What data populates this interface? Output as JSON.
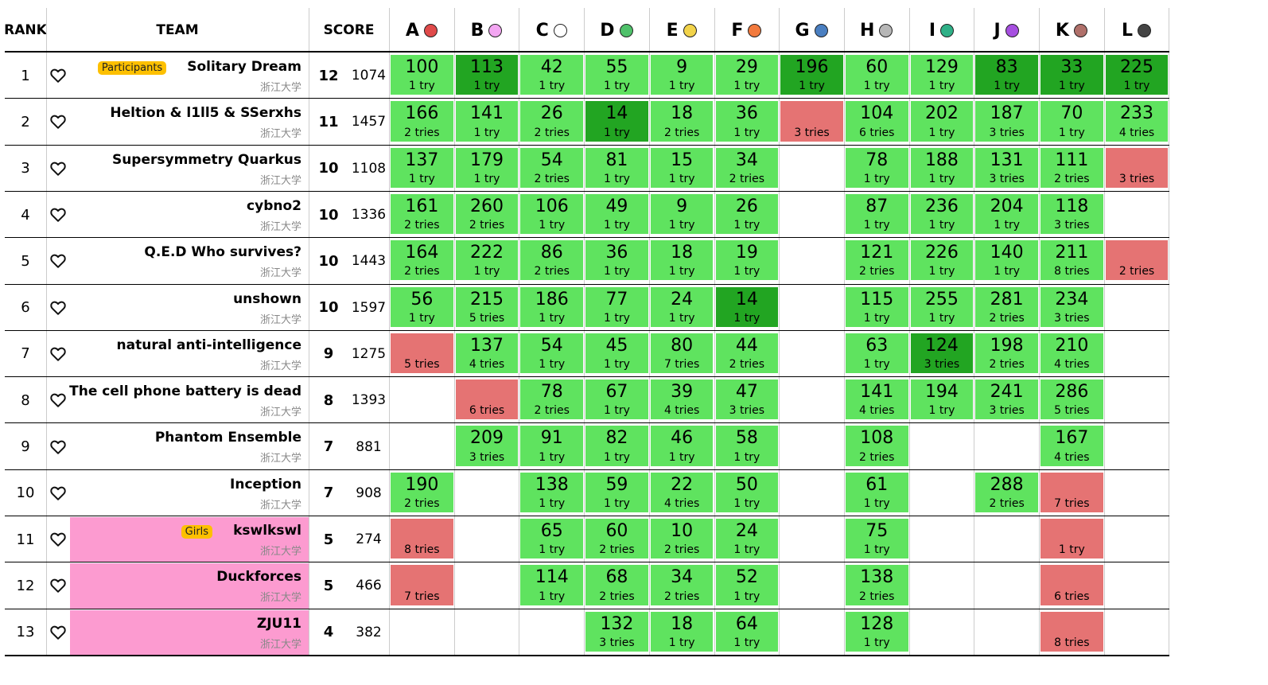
{
  "header": {
    "rank": "RANK",
    "team": "TEAM",
    "score": "SCORE"
  },
  "problems": [
    {
      "letter": "A",
      "color": "#e04a4a"
    },
    {
      "letter": "B",
      "color": "#f3a6f2"
    },
    {
      "letter": "C",
      "color": "#ffffff"
    },
    {
      "letter": "D",
      "color": "#4fc16a"
    },
    {
      "letter": "E",
      "color": "#f2d34a"
    },
    {
      "letter": "F",
      "color": "#f27a3d"
    },
    {
      "letter": "G",
      "color": "#4a7fc1"
    },
    {
      "letter": "H",
      "color": "#b7b7b7"
    },
    {
      "letter": "I",
      "color": "#2fb087"
    },
    {
      "letter": "J",
      "color": "#a64fe0"
    },
    {
      "letter": "K",
      "color": "#b0706a"
    },
    {
      "letter": "L",
      "color": "#444444"
    }
  ],
  "colors": {
    "accepted": "#5fe35f",
    "first_blood": "#22a522",
    "wrong": "#e57373",
    "girls_row": "#fc9bd0",
    "badge": "#fdc000"
  },
  "icons": {
    "favorite": "heart-outline-icon"
  },
  "teams": [
    {
      "rank": "1",
      "name": "Solitary Dream",
      "school": "浙江大学",
      "badge": "Participants",
      "girls": false,
      "solved": "12",
      "penalty": "1074",
      "results": [
        {
          "s": "ac",
          "time": "100",
          "tries": "1 try"
        },
        {
          "s": "fb",
          "time": "113",
          "tries": "1 try"
        },
        {
          "s": "ac",
          "time": "42",
          "tries": "1 try"
        },
        {
          "s": "ac",
          "time": "55",
          "tries": "1 try"
        },
        {
          "s": "ac",
          "time": "9",
          "tries": "1 try"
        },
        {
          "s": "ac",
          "time": "29",
          "tries": "1 try"
        },
        {
          "s": "fb",
          "time": "196",
          "tries": "1 try"
        },
        {
          "s": "ac",
          "time": "60",
          "tries": "1 try"
        },
        {
          "s": "ac",
          "time": "129",
          "tries": "1 try"
        },
        {
          "s": "fb",
          "time": "83",
          "tries": "1 try"
        },
        {
          "s": "fb",
          "time": "33",
          "tries": "1 try"
        },
        {
          "s": "fb",
          "time": "225",
          "tries": "1 try"
        }
      ]
    },
    {
      "rank": "2",
      "name": "Heltion & l1ll5 & SSerxhs",
      "school": "浙江大学",
      "badge": "",
      "girls": false,
      "solved": "11",
      "penalty": "1457",
      "results": [
        {
          "s": "ac",
          "time": "166",
          "tries": "2 tries"
        },
        {
          "s": "ac",
          "time": "141",
          "tries": "1 try"
        },
        {
          "s": "ac",
          "time": "26",
          "tries": "2 tries"
        },
        {
          "s": "fb",
          "time": "14",
          "tries": "1 try"
        },
        {
          "s": "ac",
          "time": "18",
          "tries": "2 tries"
        },
        {
          "s": "ac",
          "time": "36",
          "tries": "1 try"
        },
        {
          "s": "wa",
          "time": "",
          "tries": "3 tries"
        },
        {
          "s": "ac",
          "time": "104",
          "tries": "6 tries"
        },
        {
          "s": "ac",
          "time": "202",
          "tries": "1 try"
        },
        {
          "s": "ac",
          "time": "187",
          "tries": "3 tries"
        },
        {
          "s": "ac",
          "time": "70",
          "tries": "1 try"
        },
        {
          "s": "ac",
          "time": "233",
          "tries": "4 tries"
        }
      ]
    },
    {
      "rank": "3",
      "name": "Supersymmetry Quarkus",
      "school": "浙江大学",
      "badge": "",
      "girls": false,
      "solved": "10",
      "penalty": "1108",
      "results": [
        {
          "s": "ac",
          "time": "137",
          "tries": "1 try"
        },
        {
          "s": "ac",
          "time": "179",
          "tries": "1 try"
        },
        {
          "s": "ac",
          "time": "54",
          "tries": "2 tries"
        },
        {
          "s": "ac",
          "time": "81",
          "tries": "1 try"
        },
        {
          "s": "ac",
          "time": "15",
          "tries": "1 try"
        },
        {
          "s": "ac",
          "time": "34",
          "tries": "2 tries"
        },
        {
          "s": "",
          "time": "",
          "tries": ""
        },
        {
          "s": "ac",
          "time": "78",
          "tries": "1 try"
        },
        {
          "s": "ac",
          "time": "188",
          "tries": "1 try"
        },
        {
          "s": "ac",
          "time": "131",
          "tries": "3 tries"
        },
        {
          "s": "ac",
          "time": "111",
          "tries": "2 tries"
        },
        {
          "s": "wa",
          "time": "",
          "tries": "3 tries"
        }
      ]
    },
    {
      "rank": "4",
      "name": "cybno2",
      "school": "浙江大学",
      "badge": "",
      "girls": false,
      "solved": "10",
      "penalty": "1336",
      "results": [
        {
          "s": "ac",
          "time": "161",
          "tries": "2 tries"
        },
        {
          "s": "ac",
          "time": "260",
          "tries": "2 tries"
        },
        {
          "s": "ac",
          "time": "106",
          "tries": "1 try"
        },
        {
          "s": "ac",
          "time": "49",
          "tries": "1 try"
        },
        {
          "s": "ac",
          "time": "9",
          "tries": "1 try"
        },
        {
          "s": "ac",
          "time": "26",
          "tries": "1 try"
        },
        {
          "s": "",
          "time": "",
          "tries": ""
        },
        {
          "s": "ac",
          "time": "87",
          "tries": "1 try"
        },
        {
          "s": "ac",
          "time": "236",
          "tries": "1 try"
        },
        {
          "s": "ac",
          "time": "204",
          "tries": "1 try"
        },
        {
          "s": "ac",
          "time": "118",
          "tries": "3 tries"
        },
        {
          "s": "",
          "time": "",
          "tries": ""
        }
      ]
    },
    {
      "rank": "5",
      "name": "Q.E.D Who survives?",
      "school": "浙江大学",
      "badge": "",
      "girls": false,
      "solved": "10",
      "penalty": "1443",
      "results": [
        {
          "s": "ac",
          "time": "164",
          "tries": "2 tries"
        },
        {
          "s": "ac",
          "time": "222",
          "tries": "1 try"
        },
        {
          "s": "ac",
          "time": "86",
          "tries": "2 tries"
        },
        {
          "s": "ac",
          "time": "36",
          "tries": "1 try"
        },
        {
          "s": "ac",
          "time": "18",
          "tries": "1 try"
        },
        {
          "s": "ac",
          "time": "19",
          "tries": "1 try"
        },
        {
          "s": "",
          "time": "",
          "tries": ""
        },
        {
          "s": "ac",
          "time": "121",
          "tries": "2 tries"
        },
        {
          "s": "ac",
          "time": "226",
          "tries": "1 try"
        },
        {
          "s": "ac",
          "time": "140",
          "tries": "1 try"
        },
        {
          "s": "ac",
          "time": "211",
          "tries": "8 tries"
        },
        {
          "s": "wa",
          "time": "",
          "tries": "2 tries"
        }
      ]
    },
    {
      "rank": "6",
      "name": "unshown",
      "school": "浙江大学",
      "badge": "",
      "girls": false,
      "solved": "10",
      "penalty": "1597",
      "results": [
        {
          "s": "ac",
          "time": "56",
          "tries": "1 try"
        },
        {
          "s": "ac",
          "time": "215",
          "tries": "5 tries"
        },
        {
          "s": "ac",
          "time": "186",
          "tries": "1 try"
        },
        {
          "s": "ac",
          "time": "77",
          "tries": "1 try"
        },
        {
          "s": "ac",
          "time": "24",
          "tries": "1 try"
        },
        {
          "s": "fb",
          "time": "14",
          "tries": "1 try"
        },
        {
          "s": "",
          "time": "",
          "tries": ""
        },
        {
          "s": "ac",
          "time": "115",
          "tries": "1 try"
        },
        {
          "s": "ac",
          "time": "255",
          "tries": "1 try"
        },
        {
          "s": "ac",
          "time": "281",
          "tries": "2 tries"
        },
        {
          "s": "ac",
          "time": "234",
          "tries": "3 tries"
        },
        {
          "s": "",
          "time": "",
          "tries": ""
        }
      ]
    },
    {
      "rank": "7",
      "name": "natural anti-intelligence",
      "school": "浙江大学",
      "badge": "",
      "girls": false,
      "solved": "9",
      "penalty": "1275",
      "results": [
        {
          "s": "wa",
          "time": "",
          "tries": "5 tries"
        },
        {
          "s": "ac",
          "time": "137",
          "tries": "4 tries"
        },
        {
          "s": "ac",
          "time": "54",
          "tries": "1 try"
        },
        {
          "s": "ac",
          "time": "45",
          "tries": "1 try"
        },
        {
          "s": "ac",
          "time": "80",
          "tries": "7 tries"
        },
        {
          "s": "ac",
          "time": "44",
          "tries": "2 tries"
        },
        {
          "s": "",
          "time": "",
          "tries": ""
        },
        {
          "s": "ac",
          "time": "63",
          "tries": "1 try"
        },
        {
          "s": "fb",
          "time": "124",
          "tries": "3 tries"
        },
        {
          "s": "ac",
          "time": "198",
          "tries": "2 tries"
        },
        {
          "s": "ac",
          "time": "210",
          "tries": "4 tries"
        },
        {
          "s": "",
          "time": "",
          "tries": ""
        }
      ]
    },
    {
      "rank": "8",
      "name": "The cell phone battery is dead",
      "school": "浙江大学",
      "badge": "",
      "girls": false,
      "solved": "8",
      "penalty": "1393",
      "results": [
        {
          "s": "",
          "time": "",
          "tries": ""
        },
        {
          "s": "wa",
          "time": "",
          "tries": "6 tries"
        },
        {
          "s": "ac",
          "time": "78",
          "tries": "2 tries"
        },
        {
          "s": "ac",
          "time": "67",
          "tries": "1 try"
        },
        {
          "s": "ac",
          "time": "39",
          "tries": "4 tries"
        },
        {
          "s": "ac",
          "time": "47",
          "tries": "3 tries"
        },
        {
          "s": "",
          "time": "",
          "tries": ""
        },
        {
          "s": "ac",
          "time": "141",
          "tries": "4 tries"
        },
        {
          "s": "ac",
          "time": "194",
          "tries": "1 try"
        },
        {
          "s": "ac",
          "time": "241",
          "tries": "3 tries"
        },
        {
          "s": "ac",
          "time": "286",
          "tries": "5 tries"
        },
        {
          "s": "",
          "time": "",
          "tries": ""
        }
      ]
    },
    {
      "rank": "9",
      "name": "Phantom Ensemble",
      "school": "浙江大学",
      "badge": "",
      "girls": false,
      "solved": "7",
      "penalty": "881",
      "results": [
        {
          "s": "",
          "time": "",
          "tries": ""
        },
        {
          "s": "ac",
          "time": "209",
          "tries": "3 tries"
        },
        {
          "s": "ac",
          "time": "91",
          "tries": "1 try"
        },
        {
          "s": "ac",
          "time": "82",
          "tries": "1 try"
        },
        {
          "s": "ac",
          "time": "46",
          "tries": "1 try"
        },
        {
          "s": "ac",
          "time": "58",
          "tries": "1 try"
        },
        {
          "s": "",
          "time": "",
          "tries": ""
        },
        {
          "s": "ac",
          "time": "108",
          "tries": "2 tries"
        },
        {
          "s": "",
          "time": "",
          "tries": ""
        },
        {
          "s": "",
          "time": "",
          "tries": ""
        },
        {
          "s": "ac",
          "time": "167",
          "tries": "4 tries"
        },
        {
          "s": "",
          "time": "",
          "tries": ""
        }
      ]
    },
    {
      "rank": "10",
      "name": "Inception",
      "school": "浙江大学",
      "badge": "",
      "girls": false,
      "solved": "7",
      "penalty": "908",
      "results": [
        {
          "s": "ac",
          "time": "190",
          "tries": "2 tries"
        },
        {
          "s": "",
          "time": "",
          "tries": ""
        },
        {
          "s": "ac",
          "time": "138",
          "tries": "1 try"
        },
        {
          "s": "ac",
          "time": "59",
          "tries": "1 try"
        },
        {
          "s": "ac",
          "time": "22",
          "tries": "4 tries"
        },
        {
          "s": "ac",
          "time": "50",
          "tries": "1 try"
        },
        {
          "s": "",
          "time": "",
          "tries": ""
        },
        {
          "s": "ac",
          "time": "61",
          "tries": "1 try"
        },
        {
          "s": "",
          "time": "",
          "tries": ""
        },
        {
          "s": "ac",
          "time": "288",
          "tries": "2 tries"
        },
        {
          "s": "wa",
          "time": "",
          "tries": "7 tries"
        },
        {
          "s": "",
          "time": "",
          "tries": ""
        }
      ]
    },
    {
      "rank": "11",
      "name": "kswlkswl",
      "school": "浙江大学",
      "badge": "Girls",
      "girls": true,
      "solved": "5",
      "penalty": "274",
      "results": [
        {
          "s": "wa",
          "time": "",
          "tries": "8 tries"
        },
        {
          "s": "",
          "time": "",
          "tries": ""
        },
        {
          "s": "ac",
          "time": "65",
          "tries": "1 try"
        },
        {
          "s": "ac",
          "time": "60",
          "tries": "2 tries"
        },
        {
          "s": "ac",
          "time": "10",
          "tries": "2 tries"
        },
        {
          "s": "ac",
          "time": "24",
          "tries": "1 try"
        },
        {
          "s": "",
          "time": "",
          "tries": ""
        },
        {
          "s": "ac",
          "time": "75",
          "tries": "1 try"
        },
        {
          "s": "",
          "time": "",
          "tries": ""
        },
        {
          "s": "",
          "time": "",
          "tries": ""
        },
        {
          "s": "wa",
          "time": "",
          "tries": "1 try"
        },
        {
          "s": "",
          "time": "",
          "tries": ""
        }
      ]
    },
    {
      "rank": "12",
      "name": "Duckforces",
      "school": "浙江大学",
      "badge": "",
      "girls": true,
      "solved": "5",
      "penalty": "466",
      "results": [
        {
          "s": "wa",
          "time": "",
          "tries": "7 tries"
        },
        {
          "s": "",
          "time": "",
          "tries": ""
        },
        {
          "s": "ac",
          "time": "114",
          "tries": "1 try"
        },
        {
          "s": "ac",
          "time": "68",
          "tries": "2 tries"
        },
        {
          "s": "ac",
          "time": "34",
          "tries": "2 tries"
        },
        {
          "s": "ac",
          "time": "52",
          "tries": "1 try"
        },
        {
          "s": "",
          "time": "",
          "tries": ""
        },
        {
          "s": "ac",
          "time": "138",
          "tries": "2 tries"
        },
        {
          "s": "",
          "time": "",
          "tries": ""
        },
        {
          "s": "",
          "time": "",
          "tries": ""
        },
        {
          "s": "wa",
          "time": "",
          "tries": "6 tries"
        },
        {
          "s": "",
          "time": "",
          "tries": ""
        }
      ]
    },
    {
      "rank": "13",
      "name": "ZJU11",
      "school": "浙江大学",
      "badge": "",
      "girls": true,
      "solved": "4",
      "penalty": "382",
      "results": [
        {
          "s": "",
          "time": "",
          "tries": ""
        },
        {
          "s": "",
          "time": "",
          "tries": ""
        },
        {
          "s": "",
          "time": "",
          "tries": ""
        },
        {
          "s": "ac",
          "time": "132",
          "tries": "3 tries"
        },
        {
          "s": "ac",
          "time": "18",
          "tries": "1 try"
        },
        {
          "s": "ac",
          "time": "64",
          "tries": "1 try"
        },
        {
          "s": "",
          "time": "",
          "tries": ""
        },
        {
          "s": "ac",
          "time": "128",
          "tries": "1 try"
        },
        {
          "s": "",
          "time": "",
          "tries": ""
        },
        {
          "s": "",
          "time": "",
          "tries": ""
        },
        {
          "s": "wa",
          "time": "",
          "tries": "8 tries"
        },
        {
          "s": "",
          "time": "",
          "tries": ""
        }
      ]
    }
  ]
}
